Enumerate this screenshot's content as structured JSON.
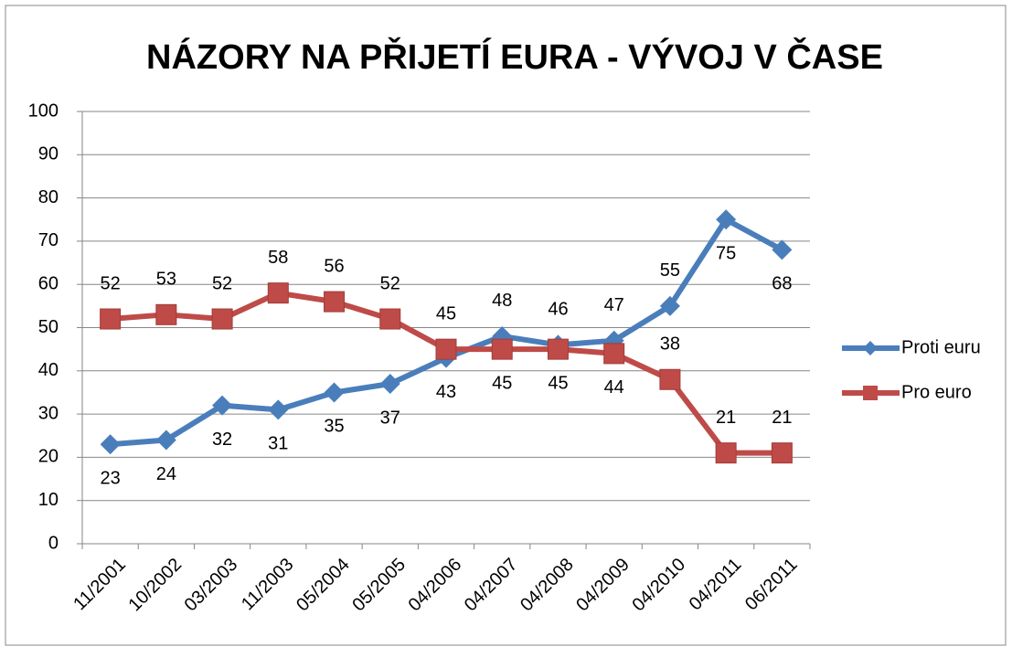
{
  "chart_data": {
    "type": "line",
    "title": "NÁZORY NA PŘIJETÍ EURA - VÝVOJ V ČASE",
    "categories": [
      "11/2001",
      "10/2002",
      "03/2003",
      "11/2003",
      "05/2004",
      "05/2005",
      "04/2006",
      "04/2007",
      "04/2008",
      "04/2009",
      "04/2010",
      "04/2011",
      "06/2011"
    ],
    "series": [
      {
        "name": "Proti euru",
        "color": "#4a7ebb",
        "values": [
          23,
          24,
          32,
          31,
          35,
          37,
          43,
          48,
          46,
          47,
          55,
          75,
          68
        ]
      },
      {
        "name": "Pro euro",
        "color": "#be4b48",
        "values": [
          52,
          53,
          52,
          58,
          56,
          52,
          45,
          45,
          45,
          44,
          38,
          21,
          21
        ]
      }
    ],
    "ylim": [
      0,
      100
    ],
    "yticks": [
      0,
      10,
      20,
      30,
      40,
      50,
      60,
      70,
      80,
      90,
      100
    ],
    "grid": true,
    "legend": "right"
  }
}
